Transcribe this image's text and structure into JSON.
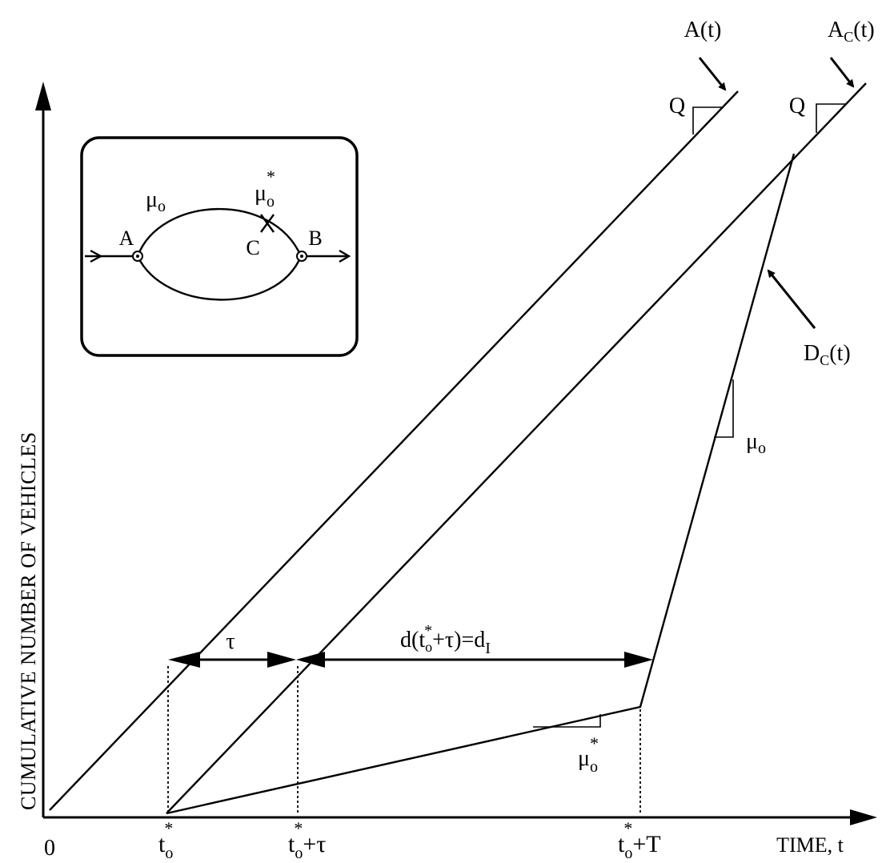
{
  "axes": {
    "y_title": "CUMULATIVE NUMBER OF VEHICLES",
    "x_title": "TIME, t",
    "origin": "0"
  },
  "curves": {
    "arrival": "A(t)",
    "arrival_c": {
      "base": "A",
      "sub": "C",
      "suffix": "(t)"
    },
    "departure_c": {
      "base": "D",
      "sub": "C",
      "suffix": "(t)"
    }
  },
  "slopes": {
    "q1": "Q",
    "q2": "Q",
    "mu": {
      "base": "μ",
      "sub": "o"
    },
    "mu_star": {
      "base": "μ",
      "sub": "o",
      "sup": "*"
    }
  },
  "intervals": {
    "tau": "τ",
    "delay": {
      "prefix": "d(t",
      "sub": "o",
      "sup": "*",
      "mid": "+τ)=d",
      "sub2": "I"
    }
  },
  "ticks": {
    "t0": {
      "base": "t",
      "sub": "o",
      "sup": "*"
    },
    "t0_tau": {
      "base": "t",
      "sub": "o",
      "sup": "*",
      "suffix": "+τ"
    },
    "t0_T": {
      "base": "t",
      "sub": "o",
      "sup": "*",
      "suffix": "+T"
    }
  },
  "inset": {
    "node_a": "A",
    "node_b": "B",
    "node_c": "C",
    "mu": {
      "base": "μ",
      "sub": "o"
    },
    "mu_star": {
      "base": "μ",
      "sub": "o",
      "sup": "*"
    }
  }
}
